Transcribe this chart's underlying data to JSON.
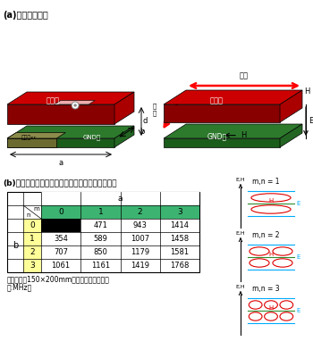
{
  "title_a": "(a)平板共振模式",
  "title_b": "(b)平行平板模式的共振頻率與電場磁場的動作特性",
  "table_caption_line1": "平行平板（150×200mm）的共振頻率表（單",
  "table_caption_line2": "位:MHz）",
  "table_data": [
    [
      "",
      471,
      943,
      1414
    ],
    [
      354,
      589,
      1007,
      1458
    ],
    [
      707,
      850,
      1179,
      1581
    ],
    [
      1061,
      1161,
      1419,
      1768
    ]
  ],
  "color_red": "#cc0000",
  "color_dark_green": "#2d7a2d",
  "color_green_header": "#3cb371",
  "color_yellow": "#ffff99",
  "color_olive": "#8B8B4B",
  "color_pink_light": "#f5cccc",
  "bg_color": "#ffffff"
}
